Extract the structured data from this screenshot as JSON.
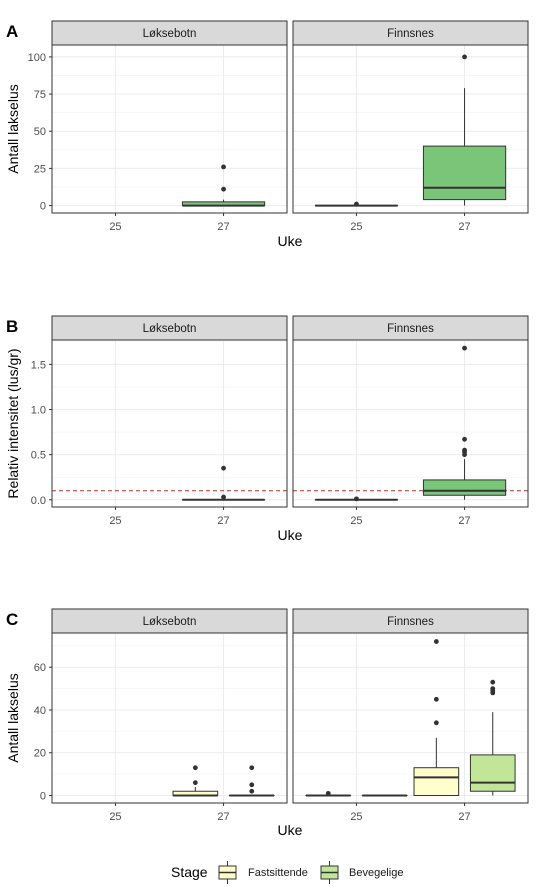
{
  "chart_data": [
    {
      "type": "boxplot",
      "panel_tag": "A",
      "ylabel": "Antall lakselus",
      "xlabel": "Uke",
      "x_categories": [
        "25",
        "27"
      ],
      "ylim": [
        -5,
        108
      ],
      "yticks": [
        0,
        25,
        50,
        75,
        100
      ],
      "ytick_labels": [
        "0",
        "25",
        "50",
        "75",
        "100"
      ],
      "facets": [
        {
          "label": "Løksebotn",
          "boxes": [
            {
              "x": "27",
              "fill": "#79c679",
              "q1": 0,
              "median": 0,
              "q3": 2.5,
              "whisker_low": 0,
              "whisker_high": 4,
              "outliers": [
                11,
                26
              ]
            }
          ]
        },
        {
          "label": "Finnsnes",
          "boxes": [
            {
              "x": "25",
              "fill": "#79c679",
              "q1": 0,
              "median": 0,
              "q3": 0,
              "whisker_low": 0,
              "whisker_high": 0,
              "outliers": [
                1
              ]
            },
            {
              "x": "27",
              "fill": "#79c679",
              "q1": 4,
              "median": 12,
              "q3": 40,
              "whisker_low": 0,
              "whisker_high": 79,
              "outliers": [
                100
              ]
            }
          ]
        }
      ]
    },
    {
      "type": "boxplot",
      "panel_tag": "B",
      "ylabel": "Relativ intensitet (lus/gr)",
      "xlabel": "Uke",
      "x_categories": [
        "25",
        "27"
      ],
      "ylim": [
        -0.08,
        1.77
      ],
      "yticks": [
        0,
        0.5,
        1.0,
        1.5
      ],
      "ytick_labels": [
        "0.0",
        "0.5",
        "1.0",
        "1.5"
      ],
      "reference_line": {
        "y": 0.1,
        "color": "#e41a1c",
        "style": "dashed"
      },
      "facets": [
        {
          "label": "Løksebotn",
          "boxes": [
            {
              "x": "27",
              "fill": "#79c679",
              "q1": 0,
              "median": 0,
              "q3": 0,
              "whisker_low": 0,
              "whisker_high": 0,
              "outliers": [
                0.03,
                0.35
              ]
            }
          ]
        },
        {
          "label": "Finnsnes",
          "boxes": [
            {
              "x": "25",
              "fill": "#79c679",
              "q1": 0,
              "median": 0,
              "q3": 0,
              "whisker_low": 0,
              "whisker_high": 0,
              "outliers": [
                0.01
              ]
            },
            {
              "x": "27",
              "fill": "#79c679",
              "q1": 0.05,
              "median": 0.1,
              "q3": 0.22,
              "whisker_low": 0,
              "whisker_high": 0.45,
              "outliers": [
                0.5,
                0.53,
                0.55,
                0.67,
                1.68
              ]
            }
          ]
        }
      ]
    },
    {
      "type": "boxplot",
      "panel_tag": "C",
      "ylabel": "Antall lakselus",
      "xlabel": "Uke",
      "x_categories": [
        "25",
        "27"
      ],
      "ylim": [
        -3.5,
        76
      ],
      "yticks": [
        0,
        20,
        40,
        60
      ],
      "ytick_labels": [
        "0",
        "20",
        "40",
        "60"
      ],
      "legend": {
        "title": "Stage",
        "position": "bottom",
        "entries": [
          {
            "name": "Fastsittende",
            "color": "#ffffcc"
          },
          {
            "name": "Bevegelige",
            "color": "#c2e699"
          }
        ]
      },
      "facets": [
        {
          "label": "Løksebotn",
          "boxes": [
            {
              "x": "27",
              "group": "Fastsittende",
              "fill": "#ffffcc",
              "q1": 0,
              "median": 0,
              "q3": 2,
              "whisker_low": 0,
              "whisker_high": 4,
              "outliers": [
                6,
                13
              ]
            },
            {
              "x": "27",
              "group": "Bevegelige",
              "fill": "#c2e699",
              "q1": 0,
              "median": 0,
              "q3": 0,
              "whisker_low": 0,
              "whisker_high": 0,
              "outliers": [
                2,
                5,
                13
              ]
            }
          ]
        },
        {
          "label": "Finnsnes",
          "boxes": [
            {
              "x": "25",
              "group": "Fastsittende",
              "fill": "#ffffcc",
              "q1": 0,
              "median": 0,
              "q3": 0,
              "whisker_low": 0,
              "whisker_high": 0,
              "outliers": [
                1
              ]
            },
            {
              "x": "25",
              "group": "Bevegelige",
              "fill": "#c2e699",
              "q1": 0,
              "median": 0,
              "q3": 0,
              "whisker_low": 0,
              "whisker_high": 0,
              "outliers": []
            },
            {
              "x": "27",
              "group": "Fastsittende",
              "fill": "#ffffcc",
              "q1": 0,
              "median": 8.5,
              "q3": 13,
              "whisker_low": 0,
              "whisker_high": 27,
              "outliers": [
                34,
                45,
                72
              ]
            },
            {
              "x": "27",
              "group": "Bevegelige",
              "fill": "#c2e699",
              "q1": 2,
              "median": 6,
              "q3": 19,
              "whisker_low": 0,
              "whisker_high": 39,
              "outliers": [
                48,
                49,
                50,
                53
              ]
            }
          ]
        }
      ]
    }
  ]
}
